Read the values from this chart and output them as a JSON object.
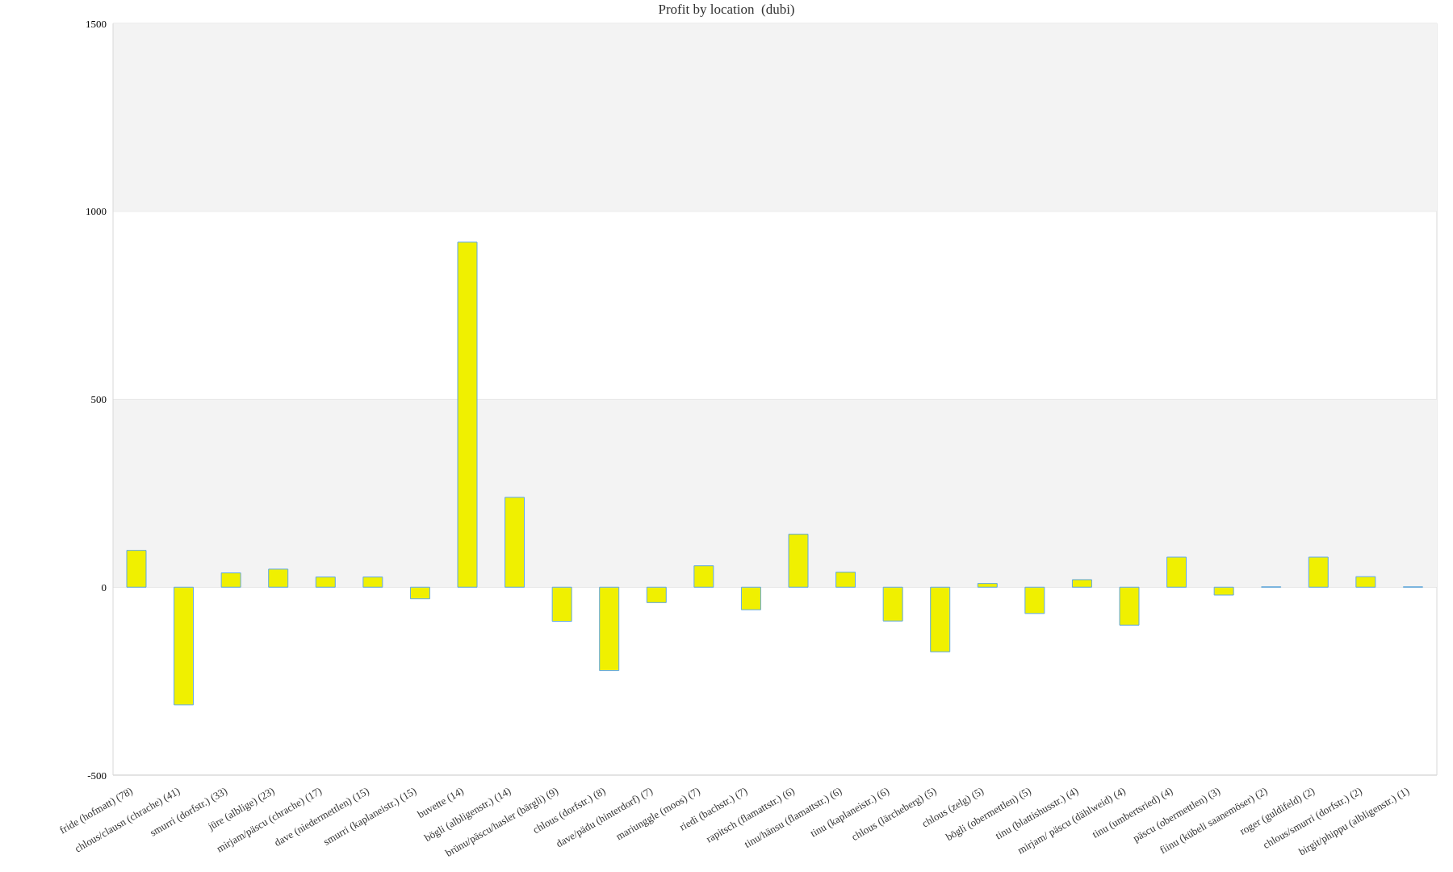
{
  "chart_data": {
    "type": "bar",
    "title": "Profit by location  (dubi)",
    "categories": [
      "fride (hofmatt) (78)",
      "chlous/clausn (chrache) (41)",
      "smurri (dorfstr.) (33)",
      "jüre (alblige) (23)",
      "mirjam/päscu (chrache) (17)",
      "dave (niedermettlen) (15)",
      "smurri (kaplaneistr.) (15)",
      "buvette (14)",
      "bögli (albligenstr.) (14)",
      "brünu/päscu/hasler (bärgli) (9)",
      "chlous (dorfstr.) (8)",
      "dave/pädu (hinterdorf) (7)",
      "mariunggle (moos) (7)",
      "riedi (bachstr.) (7)",
      "rapitsch (flamattstr.) (6)",
      "tinu/hänsu (flamattstr.) (6)",
      "tinu (kaplaneistr.) (6)",
      "chlous (lärcheberg) (5)",
      "chlous (zelg) (5)",
      "bögli (obermettlen) (5)",
      "tinu (blattishusstr.) (4)",
      "mirjam/ päscu (dählweid) (4)",
      "tinu (umbertsried) (4)",
      "päscu (obermettlen) (3)",
      "fiinu (kübeli saanemöser) (2)",
      "roger (guldifeld) (2)",
      "chlous/smurri (dorfstr.) (2)",
      "birgit/phippu (albligenstr.) (1)"
    ],
    "values": [
      98,
      -313,
      38,
      48,
      27,
      27,
      -31,
      918,
      239,
      -91,
      -222,
      -41,
      57,
      -60,
      141,
      40,
      -90,
      -172,
      10,
      -70,
      20,
      -101,
      80,
      -21,
      1,
      80,
      28,
      1
    ],
    "color": "#f0f000",
    "ylim": [
      -500,
      1500
    ],
    "yticks": [
      -500,
      0,
      500,
      1000,
      1500
    ],
    "grid": "y",
    "bands": [
      {
        "axis": "y",
        "from": 0,
        "to": 500,
        "color": "#f3f3f3"
      },
      {
        "axis": "y",
        "from": 1000,
        "to": 1500,
        "color": "#f3f3f3"
      }
    ]
  }
}
